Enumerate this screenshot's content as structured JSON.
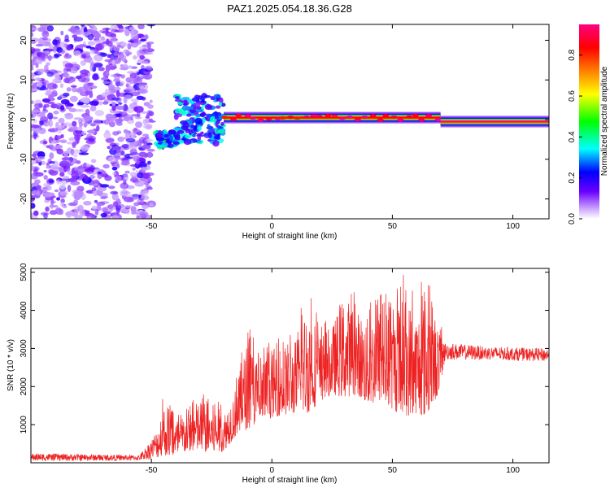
{
  "title": "PAZ1.2025.054.18.36.G28",
  "chart_data": [
    {
      "type": "heatmap",
      "title": "",
      "xlabel": "Height of straight line (km)",
      "ylabel": "Frequency (Hz)",
      "xlim": [
        -100,
        115
      ],
      "ylim": [
        -25,
        24
      ],
      "x_ticks": [
        -50,
        0,
        50,
        100
      ],
      "y_ticks": [
        -20,
        -10,
        0,
        10,
        20
      ],
      "colorbar": {
        "label": "Normalized spectral amplitude",
        "range": [
          0,
          0.95
        ],
        "ticks": [
          0.0,
          0.2,
          0.4,
          0.6,
          0.8
        ],
        "colormap": [
          "#ffffff",
          "#6a00ff",
          "#0000ff",
          "#00ffff",
          "#00ff00",
          "#ffff00",
          "#ff8000",
          "#ff0000",
          "#ff0080"
        ]
      },
      "regions": [
        {
          "x": [
            -100,
            -50
          ],
          "freq_center": 0,
          "freq_spread": 25,
          "amplitude": 0.05,
          "note": "scattered noise"
        },
        {
          "x": [
            -48,
            -40
          ],
          "freq_center": -5,
          "freq_spread": 2,
          "amplitude": 0.35
        },
        {
          "x": [
            -40,
            -20
          ],
          "freq_center": 0,
          "freq_spread": 6,
          "amplitude": 0.3
        },
        {
          "x": [
            -20,
            70
          ],
          "freq_center": 0.5,
          "freq_spread": 1.5,
          "amplitude": 0.85
        },
        {
          "x": [
            70,
            115
          ],
          "freq_center": -0.5,
          "freq_spread": 1,
          "amplitude": 0.95
        }
      ]
    },
    {
      "type": "line",
      "title": "",
      "xlabel": "Height of straight line (km)",
      "ylabel": "SNR (10 * v/v)",
      "xlim": [
        -100,
        115
      ],
      "ylim": [
        0,
        5100
      ],
      "x_ticks": [
        -50,
        0,
        50,
        100
      ],
      "y_ticks": [
        1000,
        2000,
        3000,
        4000,
        5000
      ],
      "series": [
        {
          "color": "#ee2222",
          "envelope": [
            {
              "x": -100,
              "min": 50,
              "max": 250
            },
            {
              "x": -70,
              "min": 50,
              "max": 220
            },
            {
              "x": -55,
              "min": 60,
              "max": 200
            },
            {
              "x": -49,
              "min": 100,
              "max": 700
            },
            {
              "x": -45,
              "min": 200,
              "max": 1800
            },
            {
              "x": -40,
              "min": 150,
              "max": 1300
            },
            {
              "x": -35,
              "min": 300,
              "max": 1600
            },
            {
              "x": -30,
              "min": 300,
              "max": 1900
            },
            {
              "x": -25,
              "min": 250,
              "max": 1800
            },
            {
              "x": -20,
              "min": 300,
              "max": 1500
            },
            {
              "x": -15,
              "min": 700,
              "max": 2200
            },
            {
              "x": -10,
              "min": 900,
              "max": 3650
            },
            {
              "x": -5,
              "min": 1000,
              "max": 2900
            },
            {
              "x": 0,
              "min": 1200,
              "max": 3300
            },
            {
              "x": 10,
              "min": 1300,
              "max": 3600
            },
            {
              "x": 15,
              "min": 1300,
              "max": 4750
            },
            {
              "x": 20,
              "min": 1600,
              "max": 3700
            },
            {
              "x": 25,
              "min": 1800,
              "max": 3900
            },
            {
              "x": 30,
              "min": 1700,
              "max": 4900
            },
            {
              "x": 35,
              "min": 1800,
              "max": 4400
            },
            {
              "x": 40,
              "min": 1500,
              "max": 4200
            },
            {
              "x": 45,
              "min": 1600,
              "max": 4600
            },
            {
              "x": 50,
              "min": 1400,
              "max": 4300
            },
            {
              "x": 55,
              "min": 1200,
              "max": 5000
            },
            {
              "x": 60,
              "min": 1300,
              "max": 4500
            },
            {
              "x": 64,
              "min": 1200,
              "max": 5050
            },
            {
              "x": 69,
              "min": 1800,
              "max": 4000
            },
            {
              "x": 72,
              "min": 2700,
              "max": 3150
            },
            {
              "x": 90,
              "min": 2700,
              "max": 3050
            },
            {
              "x": 115,
              "min": 2650,
              "max": 3000
            }
          ]
        }
      ]
    }
  ]
}
